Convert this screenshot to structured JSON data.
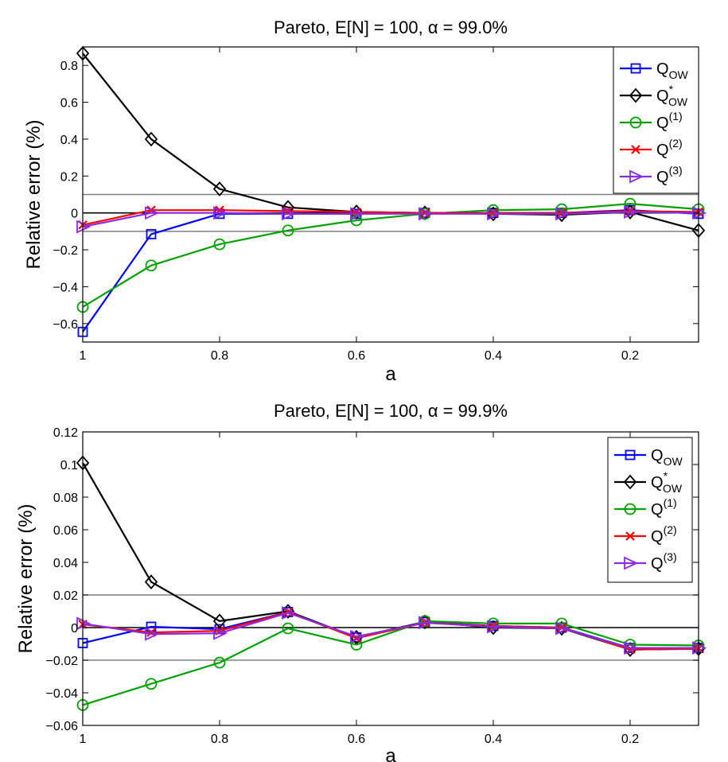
{
  "chart_data": [
    {
      "type": "line",
      "title": "Pareto, E[N] = 100, α =  99.0%",
      "xlabel": "a",
      "ylabel": "Relative error (%)",
      "x": [
        1,
        0.9,
        0.8,
        0.7,
        0.6,
        0.5,
        0.4,
        0.3,
        0.2,
        0.1
      ],
      "xlim": [
        1,
        0.1
      ],
      "x_reversed": true,
      "ylim": [
        -0.7,
        0.9
      ],
      "x_ticks": [
        1,
        0.8,
        0.6,
        0.4,
        0.2
      ],
      "x_tick_labels": [
        "1",
        "0.8",
        "0.6",
        "0.4",
        "0.2"
      ],
      "y_ticks": [
        -0.6,
        -0.4,
        -0.2,
        0,
        0.2,
        0.4,
        0.6,
        0.8
      ],
      "y_tick_labels": [
        "−0.6",
        "−0.4",
        "−0.2",
        "0",
        "0.2",
        "0.4",
        "0.6",
        "0.8"
      ],
      "reference_lines": [
        {
          "y": 0.1,
          "color": "#808080"
        },
        {
          "y": 0,
          "color": "#000000"
        },
        {
          "y": -0.1,
          "color": "#808080"
        }
      ],
      "legend_position": "top-right",
      "grid": false,
      "series": [
        {
          "base": "Q",
          "sub": "OW",
          "sup": "",
          "color": "#0000ff",
          "marker": "square",
          "values": [
            -0.645,
            -0.115,
            -0.005,
            -0.005,
            -0.005,
            0.0,
            0.0,
            0.0,
            0.015,
            -0.005
          ]
        },
        {
          "base": "Q",
          "sub": "OW",
          "sup": "*",
          "color": "#000000",
          "marker": "diamond",
          "values": [
            0.865,
            0.4,
            0.13,
            0.03,
            0.005,
            0.0,
            -0.005,
            -0.01,
            0.005,
            -0.095
          ]
        },
        {
          "base": "Q",
          "sub": "",
          "sup": "(1)",
          "color": "#00a000",
          "marker": "circle",
          "values": [
            -0.51,
            -0.285,
            -0.17,
            -0.095,
            -0.04,
            -0.005,
            0.015,
            0.02,
            0.05,
            0.02
          ]
        },
        {
          "base": "Q",
          "sub": "",
          "sup": "(2)",
          "color": "#ff0000",
          "marker": "x",
          "values": [
            -0.065,
            0.015,
            0.015,
            0.01,
            0.005,
            0.0,
            0.0,
            0.0,
            0.01,
            0.005
          ]
        },
        {
          "base": "Q",
          "sub": "",
          "sup": "(3)",
          "color": "#8a2be2",
          "marker": "triangle-right",
          "values": [
            -0.075,
            0.0,
            0.0,
            -0.005,
            -0.005,
            -0.005,
            -0.005,
            -0.005,
            0.005,
            0.0
          ]
        }
      ]
    },
    {
      "type": "line",
      "title": "Pareto, E[N] = 100, α =  99.9%",
      "xlabel": "a",
      "ylabel": "Relative error (%)",
      "x": [
        1,
        0.9,
        0.8,
        0.7,
        0.6,
        0.5,
        0.4,
        0.3,
        0.2,
        0.1
      ],
      "xlim": [
        1,
        0.1
      ],
      "x_reversed": true,
      "ylim": [
        -0.06,
        0.12
      ],
      "x_ticks": [
        1,
        0.8,
        0.6,
        0.4,
        0.2
      ],
      "x_tick_labels": [
        "1",
        "0.8",
        "0.6",
        "0.4",
        "0.2"
      ],
      "y_ticks": [
        -0.06,
        -0.04,
        -0.02,
        0,
        0.02,
        0.04,
        0.06,
        0.08,
        0.1,
        0.12
      ],
      "y_tick_labels": [
        "−0.06",
        "−0.04",
        "−0.02",
        "0",
        "0.02",
        "0.04",
        "0.06",
        "0.08",
        "0.1",
        "0.12"
      ],
      "reference_lines": [
        {
          "y": 0.02,
          "color": "#808080"
        },
        {
          "y": 0,
          "color": "#000000"
        },
        {
          "y": -0.02,
          "color": "#808080"
        }
      ],
      "legend_position": "top-right",
      "grid": false,
      "series": [
        {
          "base": "Q",
          "sub": "OW",
          "sup": "",
          "color": "#0000ff",
          "marker": "square",
          "values": [
            -0.0095,
            0.0005,
            -0.001,
            0.0095,
            -0.006,
            0.0035,
            0.001,
            0.0,
            -0.0125,
            -0.0125
          ]
        },
        {
          "base": "Q",
          "sub": "OW",
          "sup": "*",
          "color": "#000000",
          "marker": "diamond",
          "values": [
            0.101,
            0.028,
            0.004,
            0.01,
            -0.006,
            0.0035,
            0.0,
            -0.0005,
            -0.0135,
            -0.013
          ]
        },
        {
          "base": "Q",
          "sub": "",
          "sup": "(1)",
          "color": "#00a000",
          "marker": "circle",
          "values": [
            -0.0475,
            -0.0345,
            -0.0215,
            -0.0005,
            -0.0105,
            0.004,
            0.0025,
            0.0025,
            -0.0105,
            -0.011
          ]
        },
        {
          "base": "Q",
          "sub": "",
          "sup": "(2)",
          "color": "#ff0000",
          "marker": "x",
          "values": [
            0.002,
            -0.003,
            -0.002,
            0.0095,
            -0.0065,
            0.003,
            0.001,
            0.0,
            -0.0135,
            -0.013
          ]
        },
        {
          "base": "Q",
          "sub": "",
          "sup": "(3)",
          "color": "#8a2be2",
          "marker": "triangle-right",
          "values": [
            0.0025,
            -0.004,
            -0.0035,
            0.009,
            -0.0055,
            0.003,
            0.0005,
            -0.0005,
            -0.0125,
            -0.0125
          ]
        }
      ]
    }
  ]
}
